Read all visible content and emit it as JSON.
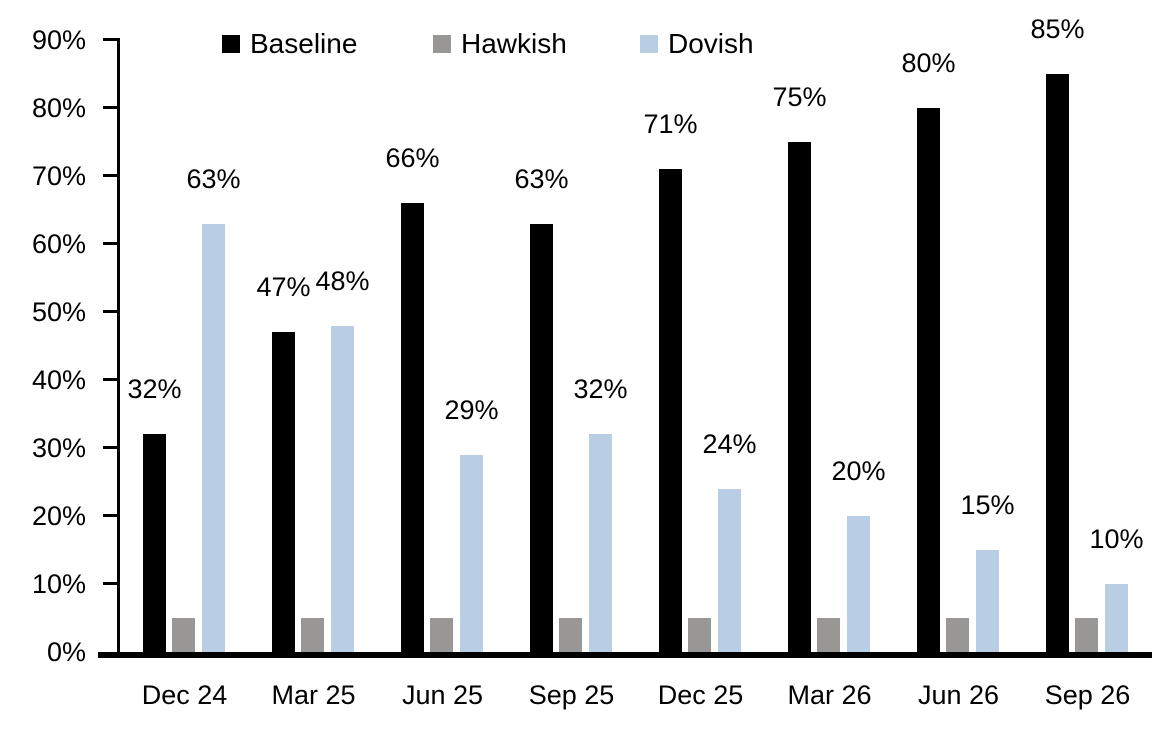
{
  "chart_data": {
    "type": "bar",
    "title": "",
    "categories": [
      "Dec 24",
      "Mar 25",
      "Jun 25",
      "Sep 25",
      "Dec 25",
      "Mar 26",
      "Jun 26",
      "Sep 26"
    ],
    "series": [
      {
        "name": "Baseline",
        "color": "#000000",
        "values": [
          32,
          47,
          66,
          63,
          71,
          75,
          80,
          85
        ],
        "show_labels": true,
        "data_labels": [
          "32%",
          "47%",
          "66%",
          "63%",
          "71%",
          "75%",
          "80%",
          "85%"
        ]
      },
      {
        "name": "Hawkish",
        "color": "#999795",
        "values": [
          5,
          5,
          5,
          5,
          5,
          5,
          5,
          5
        ],
        "show_labels": false,
        "data_labels": null
      },
      {
        "name": "Dovish",
        "color": "#B9CDE5",
        "values": [
          63,
          48,
          29,
          32,
          24,
          20,
          15,
          10
        ],
        "show_labels": true,
        "data_labels": [
          "63%",
          "48%",
          "29%",
          "32%",
          "24%",
          "20%",
          "15%",
          "10%"
        ]
      }
    ],
    "y_axis": {
      "min": 0,
      "max": 90,
      "step": 10,
      "ticks": [
        "0%",
        "10%",
        "20%",
        "30%",
        "40%",
        "50%",
        "60%",
        "70%",
        "80%",
        "90%"
      ]
    },
    "xlabel": "",
    "ylabel": "",
    "legend_position": "top",
    "grid": false,
    "axis_color": "#000000",
    "background": "#FFFFFF"
  }
}
